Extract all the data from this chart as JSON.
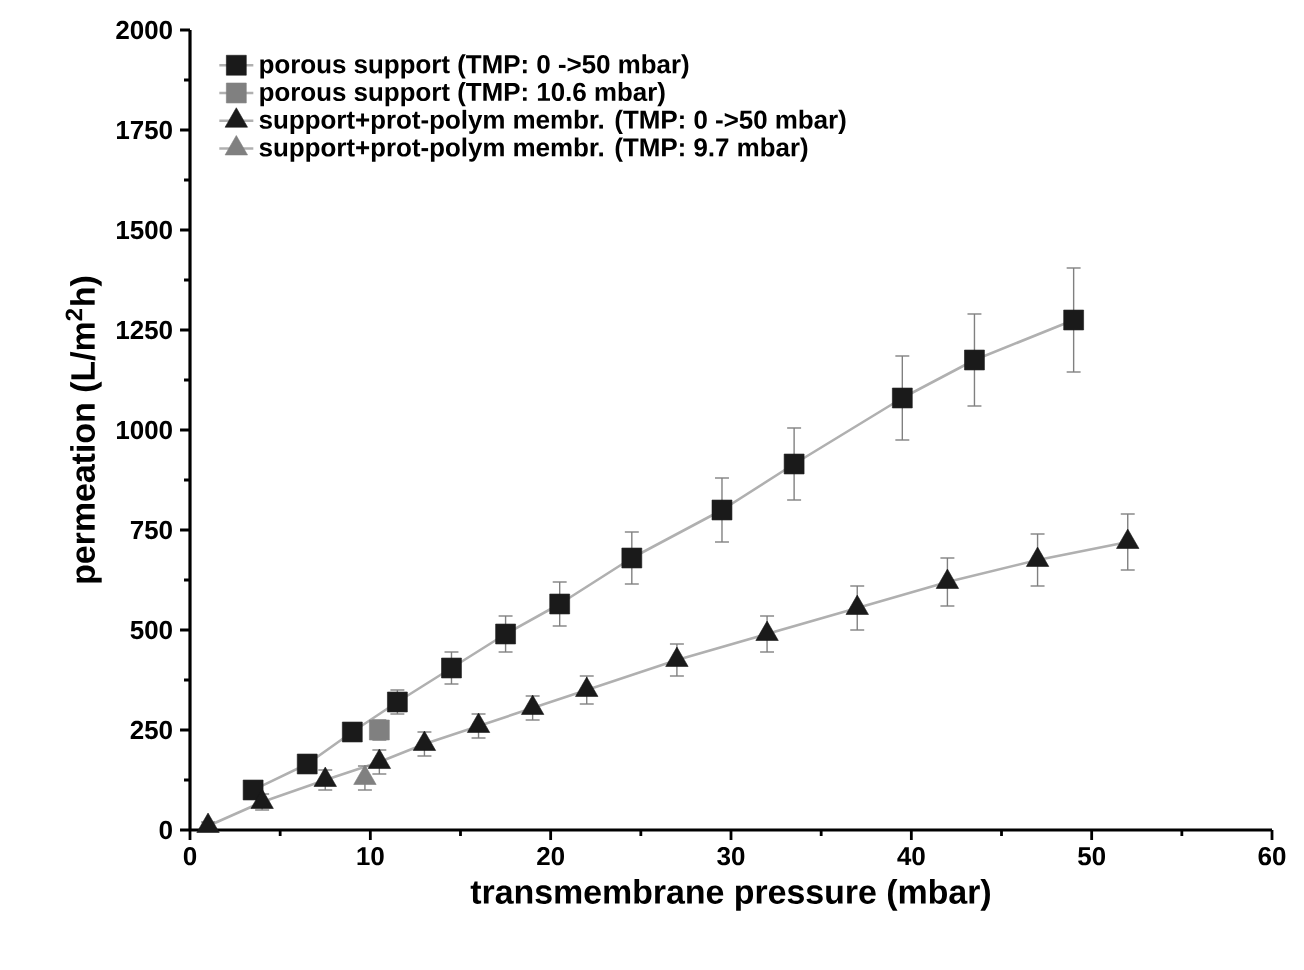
{
  "chart_data": {
    "type": "line",
    "xlabel": "transmembrane pressure (mbar)",
    "ylabel": "permeation (L/m$^{2}$h)",
    "xlim": [
      0,
      60
    ],
    "xticks": [
      0,
      10,
      20,
      30,
      40,
      50,
      60
    ],
    "ylim": [
      0,
      2000
    ],
    "yticks": [
      0,
      250,
      500,
      750,
      1000,
      1250,
      1500,
      1750,
      2000
    ],
    "legend": "top left",
    "grid": false,
    "series": [
      {
        "name": "porous support (TMP: 0 ->50 mbar)",
        "color": "#1a1a1a",
        "marker": "square",
        "x": [
          3.5,
          6.5,
          9,
          11.5,
          14.5,
          17.5,
          20.5,
          24.5,
          29.5,
          33.5,
          39.5,
          43.5,
          49
        ],
        "values": [
          100,
          165,
          245,
          320,
          405,
          490,
          565,
          680,
          800,
          915,
          1080,
          1175,
          1275
        ],
        "errors": [
          15,
          20,
          20,
          30,
          40,
          45,
          55,
          65,
          80,
          90,
          105,
          115,
          130
        ]
      },
      {
        "name": "porous support (TMP: 10.6 mbar)",
        "color": "#808080",
        "marker": "square",
        "x": [
          10.5
        ],
        "values": [
          250
        ],
        "errors": [
          25
        ]
      },
      {
        "name": "support+prot-polym membr. (TMP: 0 ->50 mbar)",
        "color": "#1a1a1a",
        "marker": "triangle",
        "x": [
          1,
          4,
          7.5,
          10.5,
          13,
          16,
          19,
          22,
          27,
          32,
          37,
          42,
          47,
          52
        ],
        "values": [
          10,
          70,
          125,
          170,
          215,
          260,
          305,
          350,
          425,
          490,
          555,
          620,
          675,
          720
        ],
        "errors": [
          10,
          20,
          25,
          30,
          30,
          30,
          30,
          35,
          40,
          45,
          55,
          60,
          65,
          70
        ]
      },
      {
        "name": "support+prot-polym membr. (TMP: 9.7 mbar)",
        "color": "#808080",
        "marker": "triangle",
        "x": [
          9.7
        ],
        "values": [
          130
        ],
        "errors": [
          30
        ]
      }
    ]
  }
}
